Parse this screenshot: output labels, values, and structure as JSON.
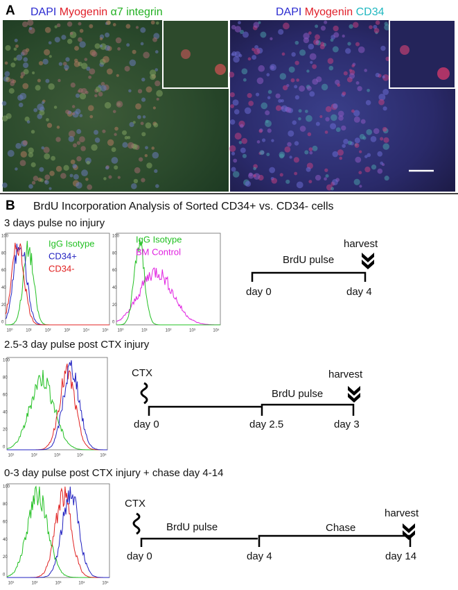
{
  "panel_a": {
    "label": "A",
    "left_caption": [
      "DAPI",
      "Myogenin",
      "α7 integrin"
    ],
    "right_caption": [
      "DAPI",
      "Myogenin",
      "CD34"
    ]
  },
  "panel_b": {
    "label": "B",
    "title": "BrdU Incorporation Analysis of Sorted CD34+ vs. CD34- cells",
    "rows": [
      {
        "title": "3 days pulse no injury",
        "plots": [
          {
            "legend": [
              "IgG Isotype",
              "CD34+",
              "CD34-"
            ],
            "yticks": [
              "100",
              "80",
              "60",
              "40",
              "20",
              "0"
            ],
            "xticks": [
              "10⁰",
              "10¹",
              "10²",
              "10³",
              "10⁴",
              "10⁵"
            ]
          },
          {
            "legend": [
              "IgG Isotype",
              "BM Control"
            ],
            "yticks": [
              "100",
              "80",
              "60",
              "40",
              "20",
              "0"
            ],
            "xticks": [
              "10⁰",
              "10¹",
              "10²",
              "10³",
              "10⁴"
            ]
          }
        ],
        "timeline": {
          "pulse": "BrdU pulse",
          "harvest": "harvest",
          "days": [
            "day 0",
            "day 4"
          ]
        }
      },
      {
        "title": "2.5-3 day pulse post CTX injury",
        "plots": [
          {
            "yticks": [
              "100",
              "80",
              "60",
              "40",
              "20",
              "0"
            ],
            "xticks": [
              "10¹",
              "10²",
              "10³",
              "10⁴",
              "10⁵"
            ]
          }
        ],
        "timeline": {
          "injury": "CTX",
          "pulse": "BrdU pulse",
          "harvest": "harvest",
          "days": [
            "day 0",
            "day 2.5",
            "day 3"
          ]
        }
      },
      {
        "title": "0-3 day pulse post CTX injury + chase day 4-14",
        "plots": [
          {
            "yticks": [
              "100",
              "80",
              "60",
              "40",
              "20",
              "0"
            ],
            "xticks": [
              "10¹",
              "10²",
              "10³",
              "10⁴",
              "10⁵"
            ]
          }
        ],
        "timeline": {
          "injury": "CTX",
          "pulse": "BrdU pulse",
          "chase": "Chase",
          "harvest": "harvest",
          "days": [
            "day 0",
            "day 4",
            "day 14"
          ]
        }
      }
    ]
  }
}
